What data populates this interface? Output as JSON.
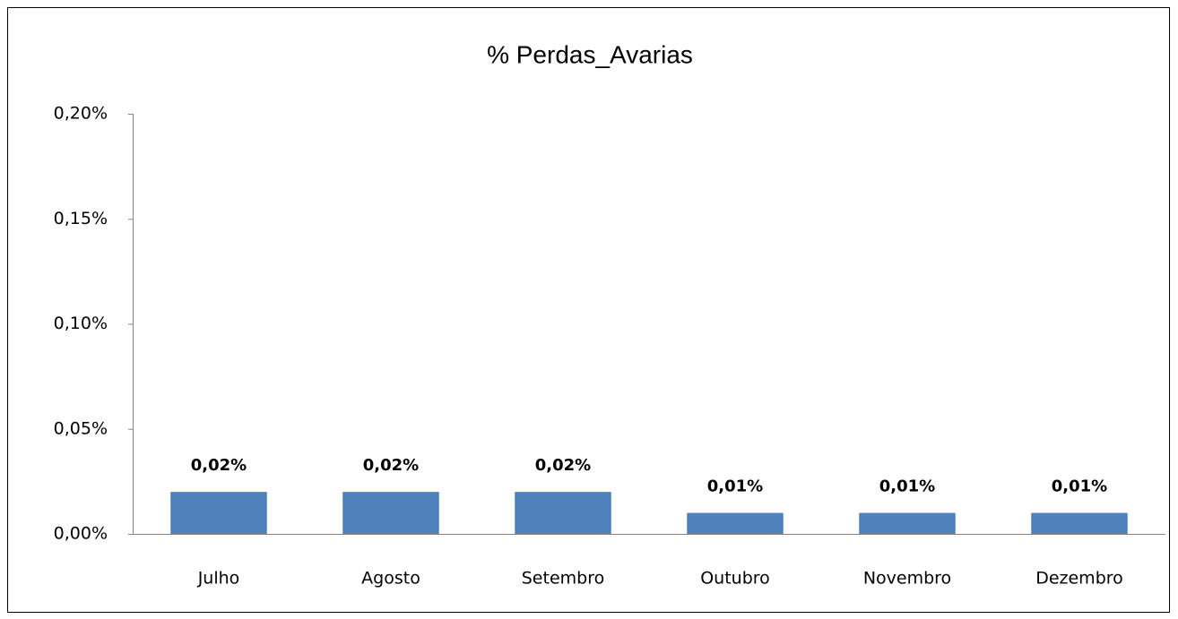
{
  "chart_data": {
    "type": "bar",
    "title": "% Perdas_Avarias",
    "categories": [
      "Julho",
      "Agosto",
      "Setembro",
      "Outubro",
      "Novembro",
      "Dezembro"
    ],
    "values": [
      0.02,
      0.02,
      0.02,
      0.01,
      0.01,
      0.01
    ],
    "value_labels": [
      "0,02%",
      "0,02%",
      "0,02%",
      "0,01%",
      "0,01%",
      "0,01%"
    ],
    "color": "#4f81bd",
    "ylim": [
      0,
      0.2
    ],
    "yticks": [
      {
        "value": 0,
        "label": "0,00%"
      },
      {
        "value": 0.05,
        "label": "0,05%"
      },
      {
        "value": 0.1,
        "label": "0,10%"
      },
      {
        "value": 0.15,
        "label": "0,15%"
      },
      {
        "value": 0.2,
        "label": "0,20%"
      }
    ],
    "grid": false
  }
}
